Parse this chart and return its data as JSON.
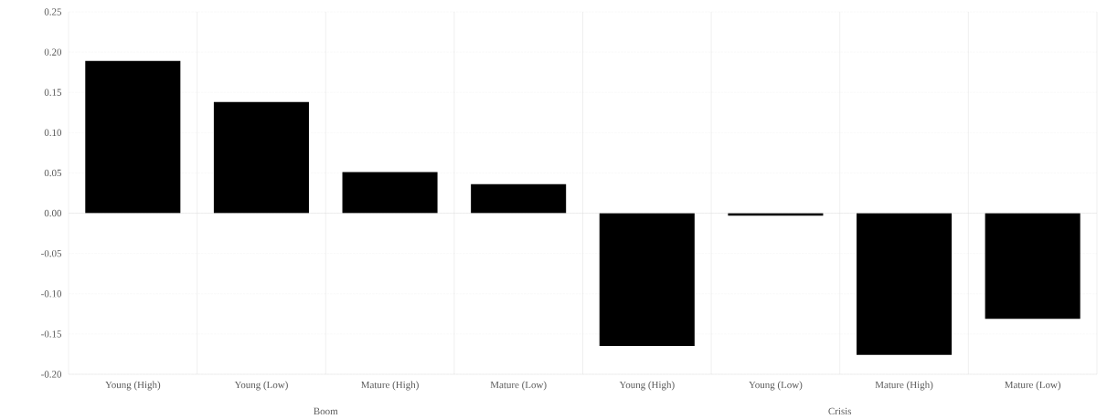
{
  "chart_data": {
    "type": "bar",
    "categories": [
      "Young (High)",
      "Young (Low)",
      "Mature (High)",
      "Mature (Low)",
      "Young (High)",
      "Young (Low)",
      "Mature (High)",
      "Mature (Low)"
    ],
    "values": [
      0.189,
      0.138,
      0.051,
      0.036,
      -0.165,
      -0.003,
      -0.176,
      -0.131
    ],
    "color": "#000000",
    "ylim": [
      -0.2,
      0.25
    ],
    "yticks": [
      {
        "value": -0.2,
        "label": "-0.20"
      },
      {
        "value": -0.15,
        "label": "-0.15"
      },
      {
        "value": -0.1,
        "label": "-0.10"
      },
      {
        "value": -0.05,
        "label": "-0.05"
      },
      {
        "value": 0,
        "label": "0.00"
      },
      {
        "value": 0.05,
        "label": "0.05"
      },
      {
        "value": 0.1,
        "label": "0.10"
      },
      {
        "value": 0.15,
        "label": "0.15"
      },
      {
        "value": 0.2,
        "label": "0.20"
      },
      {
        "value": 0.25,
        "label": "0.25"
      }
    ],
    "grid": true,
    "annotations": [
      "Boom",
      "Crisis"
    ]
  }
}
